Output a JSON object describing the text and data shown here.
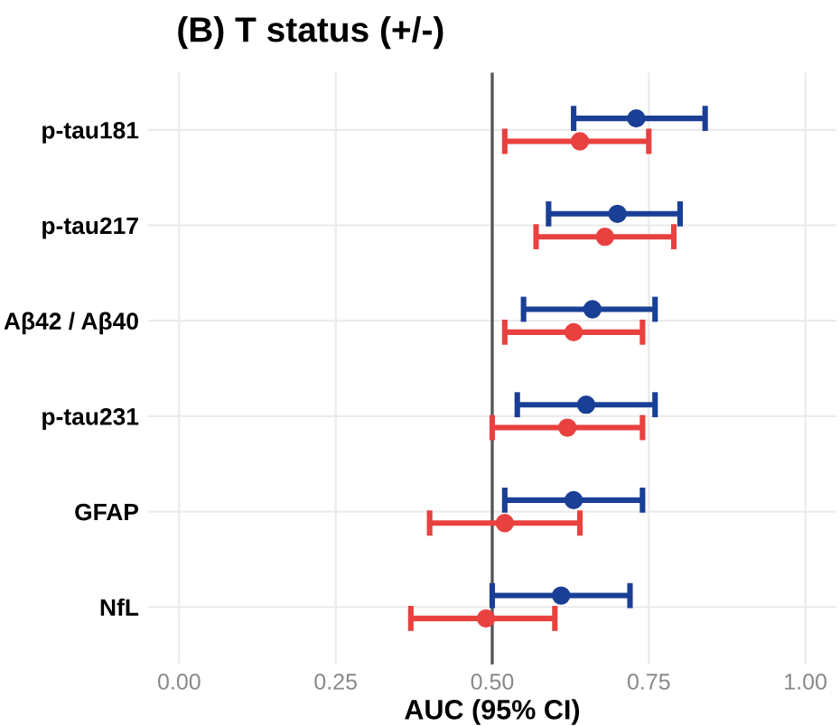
{
  "chart_data": {
    "type": "scatter",
    "orientation": "horizontal",
    "title": "(B) T status (+/-)",
    "xlabel": "AUC (95% CI)",
    "categories": [
      "p-tau181",
      "p-tau217",
      "Aβ42 / Aβ40",
      "p-tau231",
      "GFAP",
      "NfL"
    ],
    "series": [
      {
        "color": "#1a3f96",
        "values": [
          0.73,
          0.7,
          0.66,
          0.65,
          0.63,
          0.61
        ],
        "errors": [
          [
            0.63,
            0.84
          ],
          [
            0.59,
            0.8
          ],
          [
            0.55,
            0.76
          ],
          [
            0.54,
            0.76
          ],
          [
            0.52,
            0.74
          ],
          [
            0.5,
            0.72
          ]
        ]
      },
      {
        "color": "#e8413f",
        "values": [
          0.64,
          0.68,
          0.63,
          0.62,
          0.52,
          0.49
        ],
        "errors": [
          [
            0.52,
            0.75
          ],
          [
            0.57,
            0.79
          ],
          [
            0.52,
            0.74
          ],
          [
            0.5,
            0.74
          ],
          [
            0.4,
            0.64
          ],
          [
            0.37,
            0.6
          ]
        ]
      }
    ],
    "xlim": [
      -0.05,
      1.05
    ],
    "xticks": [
      {
        "value": 0,
        "label": "0.00"
      },
      {
        "value": 0.25,
        "label": "0.25"
      },
      {
        "value": 0.5,
        "label": "0.50"
      },
      {
        "value": 0.75,
        "label": "0.75"
      },
      {
        "value": 1,
        "label": "1.00"
      }
    ],
    "ref_lines": [
      {
        "axis": "x",
        "value": 0.5,
        "color": "#555555"
      }
    ],
    "grid": true,
    "marker": "circle"
  }
}
